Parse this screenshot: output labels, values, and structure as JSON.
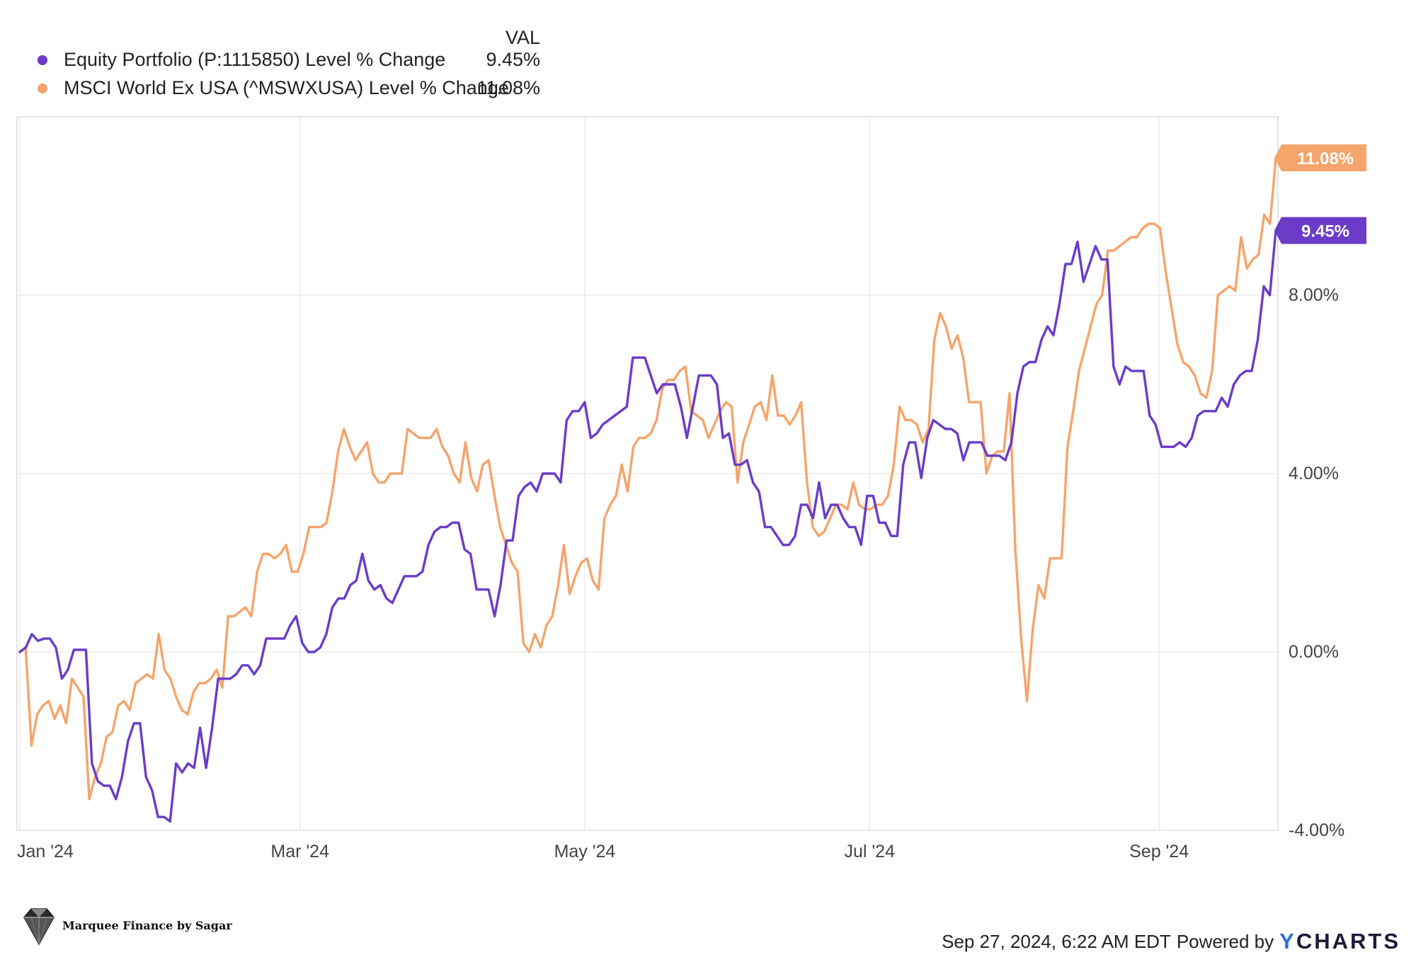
{
  "chart_data": {
    "type": "line",
    "title": "",
    "legend": {
      "header": "VAL",
      "position": "top-left"
    },
    "y_axis": {
      "min": -4,
      "max": 12,
      "ticks": [
        {
          "value": 8,
          "label": "8.00%"
        },
        {
          "value": 4,
          "label": "4.00%"
        },
        {
          "value": 0,
          "label": "0.00%"
        },
        {
          "value": -4,
          "label": "-4.00%"
        }
      ]
    },
    "x_axis": {
      "start": "2024-01-01",
      "end": "2024-09-26",
      "ticks": [
        {
          "date": "2024-01-01",
          "label": "Jan '24"
        },
        {
          "date": "2024-03-01",
          "label": "Mar '24"
        },
        {
          "date": "2024-05-01",
          "label": "May '24"
        },
        {
          "date": "2024-07-01",
          "label": "Jul '24"
        },
        {
          "date": "2024-09-01",
          "label": "Sep '24"
        }
      ]
    },
    "series": [
      {
        "name": "Equity Portfolio (P:1115850) Level % Change",
        "last_value": "9.45%",
        "color": "#6a3cc8",
        "start": "2024-01-01",
        "days_step": 1,
        "values": [
          0,
          0.1,
          0.4,
          0.25,
          0.3,
          0.3,
          0.1,
          -0.6,
          -0.4,
          0.05,
          0.05,
          0.05,
          -2.5,
          -2.9,
          -3.0,
          -3.0,
          -3.3,
          -2.8,
          -2.0,
          -1.6,
          -1.6,
          -2.8,
          -3.1,
          -3.7,
          -3.7,
          -3.8,
          -2.5,
          -2.7,
          -2.5,
          -2.6,
          -1.7,
          -2.6,
          -1.7,
          -0.6,
          -0.6,
          -0.6,
          -0.5,
          -0.3,
          -0.3,
          -0.5,
          -0.3,
          0.3,
          0.3,
          0.3,
          0.3,
          0.6,
          0.8,
          0.2,
          0.0,
          0.0,
          0.1,
          0.4,
          1.0,
          1.2,
          1.2,
          1.5,
          1.6,
          2.2,
          1.6,
          1.4,
          1.5,
          1.2,
          1.1,
          1.4,
          1.7,
          1.7,
          1.7,
          1.8,
          2.4,
          2.7,
          2.8,
          2.8,
          2.9,
          2.9,
          2.3,
          2.2,
          1.4,
          1.4,
          1.4,
          0.8,
          1.5,
          2.5,
          2.5,
          3.5,
          3.7,
          3.8,
          3.6,
          4.0,
          4.0,
          4.0,
          3.8,
          5.2,
          5.4,
          5.4,
          5.6,
          4.8,
          4.9,
          5.1,
          5.2,
          5.3,
          5.4,
          5.5,
          6.6,
          6.6,
          6.6,
          6.2,
          5.8,
          6.0,
          6.0,
          6.0,
          5.5,
          4.8,
          5.5,
          6.2,
          6.2,
          6.2,
          6.0,
          4.8,
          4.9,
          4.2,
          4.2,
          4.3,
          3.8,
          3.6,
          2.8,
          2.8,
          2.6,
          2.4,
          2.4,
          2.6,
          3.3,
          3.3,
          3.0,
          3.8,
          3.0,
          3.3,
          3.3,
          3.0,
          2.8,
          2.8,
          2.4,
          3.5,
          3.5,
          2.9,
          2.9,
          2.6,
          2.6,
          4.2,
          4.7,
          4.7,
          3.9,
          4.8,
          5.2,
          5.1,
          5.0,
          5.0,
          4.9,
          4.3,
          4.7,
          4.7,
          4.7,
          4.4,
          4.4,
          4.4,
          4.3,
          4.7,
          5.8,
          6.4,
          6.5,
          6.5,
          7.0,
          7.3,
          7.1,
          7.8,
          8.7,
          8.7,
          9.2,
          8.3,
          8.7,
          9.1,
          8.8,
          8.8,
          6.4,
          6.0,
          6.4,
          6.3,
          6.3,
          6.3,
          5.3,
          5.1,
          4.6,
          4.6,
          4.6,
          4.7,
          4.6,
          4.8,
          5.3,
          5.4,
          5.4,
          5.4,
          5.7,
          5.5,
          6.0,
          6.2,
          6.3,
          6.3,
          7.0,
          8.2,
          8.0,
          9.45
        ]
      },
      {
        "name": "MSCI World Ex USA (^MSWXUSA) Level % Change",
        "last_value": "11.08%",
        "color": "#f5a46b",
        "start": "2024-01-01",
        "days_step": 1,
        "values": [
          0,
          0.1,
          -2.1,
          -1.4,
          -1.2,
          -1.1,
          -1.5,
          -1.2,
          -1.6,
          -0.6,
          -0.8,
          -1.0,
          -3.3,
          -2.8,
          -2.5,
          -1.9,
          -1.8,
          -1.2,
          -1.1,
          -1.3,
          -0.7,
          -0.6,
          -0.5,
          -0.6,
          0.4,
          -0.4,
          -0.6,
          -1.0,
          -1.3,
          -1.4,
          -0.9,
          -0.7,
          -0.7,
          -0.6,
          -0.4,
          -0.8,
          0.8,
          0.8,
          0.9,
          1.0,
          0.8,
          1.8,
          2.2,
          2.2,
          2.1,
          2.2,
          2.4,
          1.8,
          1.8,
          2.2,
          2.8,
          2.8,
          2.8,
          2.9,
          3.6,
          4.5,
          5.0,
          4.6,
          4.3,
          4.5,
          4.7,
          4.0,
          3.8,
          3.8,
          4.0,
          4.0,
          4.0,
          5.0,
          4.9,
          4.8,
          4.8,
          4.8,
          5.0,
          4.6,
          4.4,
          4.0,
          3.8,
          4.7,
          3.9,
          3.6,
          4.2,
          4.3,
          3.5,
          2.8,
          2.4,
          2.0,
          1.8,
          0.2,
          0.0,
          0.4,
          0.1,
          0.6,
          0.8,
          1.5,
          2.4,
          1.3,
          1.7,
          2.0,
          2.1,
          1.6,
          1.4,
          3.0,
          3.3,
          3.5,
          4.2,
          3.6,
          4.6,
          4.8,
          4.8,
          4.9,
          5.2,
          5.9,
          6.1,
          6.1,
          6.3,
          6.4,
          5.4,
          5.3,
          5.2,
          4.8,
          5.1,
          5.4,
          5.6,
          5.5,
          3.8,
          4.7,
          5.1,
          5.5,
          5.6,
          5.2,
          6.2,
          5.3,
          5.3,
          5.1,
          5.3,
          5.6,
          3.8,
          2.8,
          2.6,
          2.7,
          3.0,
          3.3,
          3.3,
          3.2,
          3.8,
          3.3,
          3.2,
          3.2,
          3.3,
          3.3,
          3.5,
          4.2,
          5.5,
          5.2,
          5.2,
          5.1,
          4.7,
          5.0,
          7.0,
          7.6,
          7.3,
          6.8,
          7.1,
          6.6,
          5.6,
          5.6,
          5.6,
          4.0,
          4.4,
          4.5,
          4.5,
          5.8,
          2.3,
          0.3,
          -1.1,
          0.5,
          1.5,
          1.2,
          2.1,
          2.1,
          2.1,
          4.6,
          5.4,
          6.3,
          6.8,
          7.3,
          7.8,
          8.0,
          9.0,
          9.0,
          9.1,
          9.2,
          9.3,
          9.3,
          9.5,
          9.6,
          9.6,
          9.5,
          8.5,
          7.7,
          6.9,
          6.5,
          6.4,
          6.2,
          5.8,
          5.7,
          6.3,
          8.0,
          8.1,
          8.2,
          8.1,
          9.3,
          8.6,
          8.8,
          8.9,
          9.8,
          9.6,
          11.08
        ]
      }
    ],
    "footer_timestamp": "Sep 27, 2024, 6:22 AM EDT",
    "footer_powered": "Powered by",
    "footer_brand_first": "Y",
    "footer_brand_rest": "CHARTS",
    "watermark_text": "Marquee Finance by Sagar",
    "grid": true
  }
}
